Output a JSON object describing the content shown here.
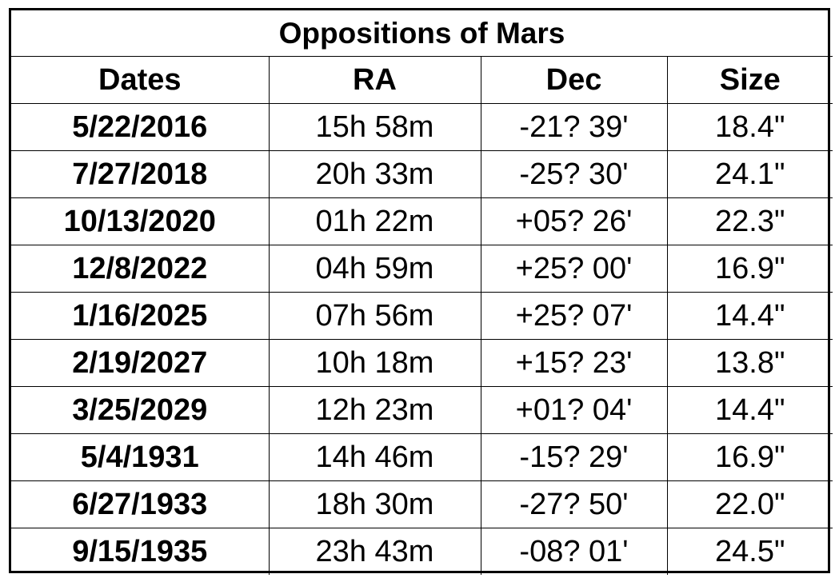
{
  "table": {
    "title": "Oppositions of Mars",
    "headers": [
      "Dates",
      "RA",
      "Dec",
      "Size"
    ],
    "rows": [
      [
        "5/22/2016",
        "15h 58m",
        "-21? 39'",
        "18.4\""
      ],
      [
        "7/27/2018",
        "20h 33m",
        "-25? 30'",
        "24.1\""
      ],
      [
        "10/13/2020",
        "01h 22m",
        "+05? 26'",
        "22.3\""
      ],
      [
        "12/8/2022",
        "04h 59m",
        "+25? 00'",
        "16.9\""
      ],
      [
        "1/16/2025",
        "07h 56m",
        "+25? 07'",
        "14.4\""
      ],
      [
        "2/19/2027",
        "10h 18m",
        "+15? 23'",
        "13.8\""
      ],
      [
        "3/25/2029",
        "12h 23m",
        "+01? 04'",
        "14.4\""
      ],
      [
        "5/4/1931",
        "14h 46m",
        "-15? 29'",
        "16.9\""
      ],
      [
        "6/27/1933",
        "18h 30m",
        "-27? 50'",
        "22.0\""
      ],
      [
        "9/15/1935",
        "23h 43m",
        "-08? 01'",
        "24.5\""
      ]
    ]
  }
}
